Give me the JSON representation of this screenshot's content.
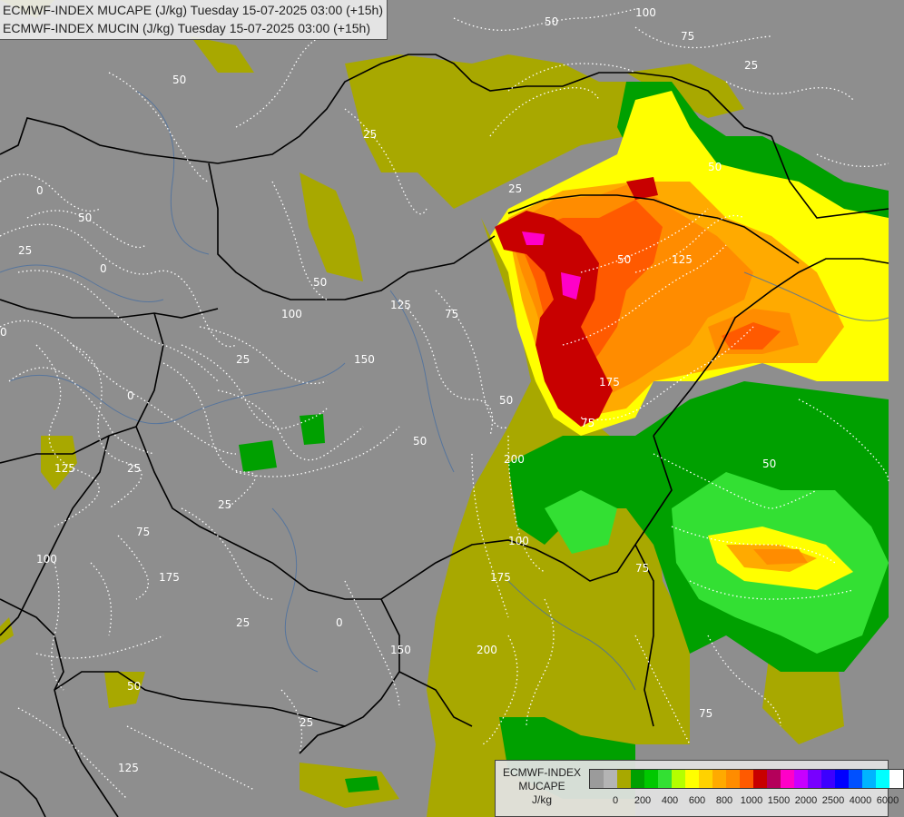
{
  "header": {
    "line1": "ECMWF-INDEX MUCAPE (J/kg) Tuesday 15-07-2025 03:00 (+15h)",
    "line2": "ECMWF-INDEX MUCIN (J/kg) Tuesday 15-07-2025 03:00 (+15h)"
  },
  "legend": {
    "title_line1": "ECMWF-INDEX",
    "title_line2": "MUCAPE",
    "title_line3": "J/kg",
    "colors": [
      "#9b9b9b",
      "#b4b4b4",
      "#a8a800",
      "#00a000",
      "#00c800",
      "#33e033",
      "#b4ff00",
      "#ffff00",
      "#ffd200",
      "#ffaa00",
      "#ff8c00",
      "#ff5a00",
      "#c80000",
      "#b4005a",
      "#ff00c8",
      "#c800ff",
      "#7800ff",
      "#3c00ff",
      "#0000ff",
      "#0050ff",
      "#00b4ff",
      "#00ffff",
      "#ffffff"
    ],
    "ticks": [
      "0",
      "200",
      "400",
      "600",
      "800",
      "1000",
      "1500",
      "2000",
      "2500",
      "4000",
      "6000"
    ]
  },
  "map": {
    "mucin_contour_labels": [
      "100",
      "50",
      "75",
      "25",
      "50",
      "25",
      "50",
      "0",
      "25",
      "50",
      "0",
      "100",
      "125",
      "50",
      "75",
      "150",
      "25",
      "0",
      "50",
      "125",
      "50",
      "75",
      "0",
      "25",
      "25",
      "175",
      "200",
      "50",
      "100",
      "175",
      "200",
      "150",
      "25",
      "0",
      "75",
      "25",
      "50",
      "125",
      "100",
      "175",
      "50",
      "75",
      "75",
      "125",
      "25"
    ]
  }
}
